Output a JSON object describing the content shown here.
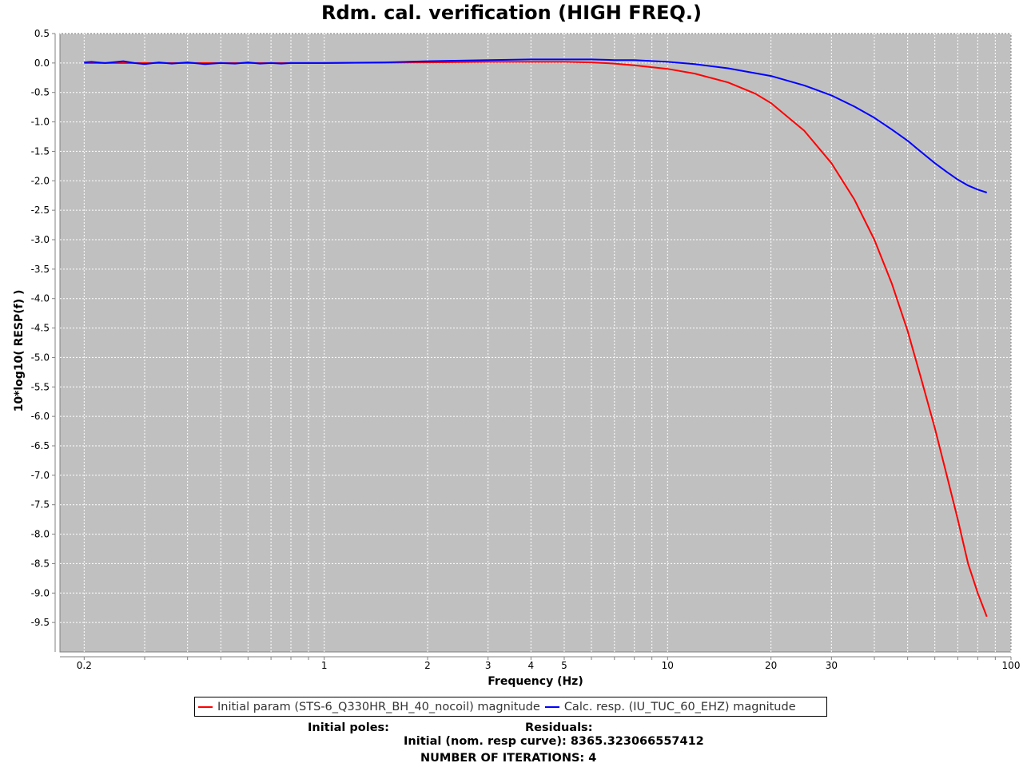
{
  "chart_data": {
    "type": "line",
    "title": "Rdm. cal. verification (HIGH FREQ.)",
    "xlabel": "Frequency (Hz)",
    "ylabel": "10*log10( RESP(f) )",
    "xscale": "log",
    "xlim": [
      0.17,
      100
    ],
    "ylim": [
      -10,
      0.5
    ],
    "x_ticks_major": [
      {
        "v": 0.2,
        "label": "0.2"
      },
      {
        "v": 1,
        "label": "1"
      },
      {
        "v": 2,
        "label": "2"
      },
      {
        "v": 3,
        "label": "3"
      },
      {
        "v": 4,
        "label": "4"
      },
      {
        "v": 5,
        "label": "5"
      },
      {
        "v": 10,
        "label": "10"
      },
      {
        "v": 20,
        "label": "20"
      },
      {
        "v": 30,
        "label": "30"
      },
      {
        "v": 100,
        "label": "100"
      }
    ],
    "y_ticks": [
      0.5,
      0.0,
      -0.5,
      -1.0,
      -1.5,
      -2.0,
      -2.5,
      -3.0,
      -3.5,
      -4.0,
      -4.5,
      -5.0,
      -5.5,
      -6.0,
      -6.5,
      -7.0,
      -7.5,
      -8.0,
      -8.5,
      -9.0,
      -9.5
    ],
    "grid": true,
    "background": "#c0c0c0",
    "legend_placement": "bottom",
    "series": [
      {
        "name": "Initial param (STS-6_Q330HR_BH_40_nocoil) magnitude",
        "color": "#ff0000",
        "x": [
          0.2,
          0.3,
          0.5,
          1,
          2,
          3,
          4,
          5,
          6,
          7,
          8,
          10,
          12,
          15,
          18,
          20,
          25,
          30,
          35,
          40,
          45,
          50,
          55,
          60,
          65,
          70,
          75,
          80,
          85
        ],
        "y": [
          0.0,
          0.0,
          0.0,
          0.0,
          0.01,
          0.02,
          0.02,
          0.02,
          0.01,
          -0.01,
          -0.04,
          -0.1,
          -0.18,
          -0.33,
          -0.52,
          -0.68,
          -1.15,
          -1.7,
          -2.32,
          -3.0,
          -3.75,
          -4.55,
          -5.4,
          -6.2,
          -7.0,
          -7.75,
          -8.5,
          -9.0,
          -9.4
        ]
      },
      {
        "name": "Calc. resp. (IU_TUC_60_EHZ) magnitude",
        "color": "#0000ff",
        "x": [
          0.2,
          0.21,
          0.23,
          0.25,
          0.26,
          0.28,
          0.3,
          0.33,
          0.36,
          0.4,
          0.45,
          0.5,
          0.55,
          0.6,
          0.65,
          0.7,
          0.75,
          0.8,
          0.9,
          1,
          1.5,
          2,
          3,
          4,
          5,
          6,
          7,
          8,
          10,
          12,
          15,
          20,
          25,
          30,
          35,
          40,
          45,
          50,
          55,
          60,
          65,
          70,
          75,
          80,
          85
        ],
        "y": [
          0.01,
          0.02,
          0.0,
          0.02,
          0.03,
          0.0,
          -0.02,
          0.01,
          -0.01,
          0.01,
          -0.02,
          0.0,
          -0.01,
          0.01,
          -0.01,
          0.0,
          -0.01,
          0.0,
          0.0,
          0.0,
          0.01,
          0.03,
          0.05,
          0.06,
          0.06,
          0.06,
          0.05,
          0.05,
          0.02,
          -0.02,
          -0.09,
          -0.22,
          -0.38,
          -0.55,
          -0.74,
          -0.93,
          -1.13,
          -1.32,
          -1.52,
          -1.7,
          -1.85,
          -1.98,
          -2.08,
          -2.15,
          -2.2
        ]
      }
    ]
  },
  "footer": {
    "initial_poles_label": "Initial poles:",
    "residuals_label": "Residuals:",
    "residual_line": "Initial (nom. resp curve): 8365.323066557412",
    "iterations_line": "NUMBER OF ITERATIONS: 4"
  }
}
